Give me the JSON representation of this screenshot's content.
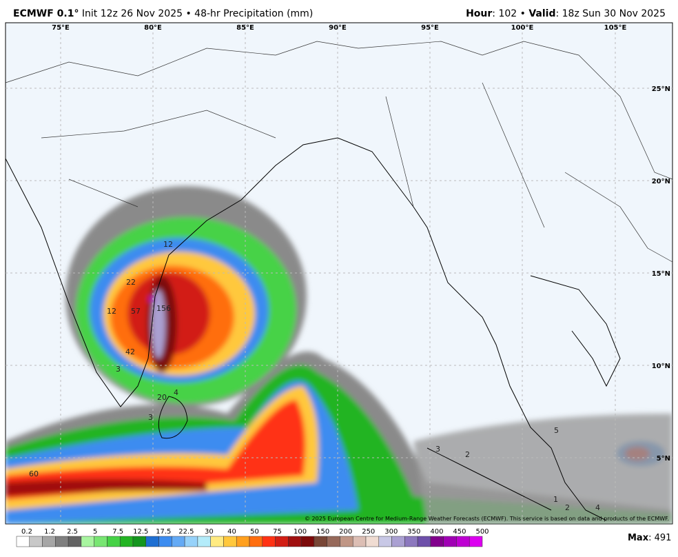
{
  "header": {
    "title": "ECMWF 0.1°",
    "subtitle": "Init 12z 26 Nov 2025 • 48-hr Precipitation (mm)",
    "hour_label": "Hour",
    "hour_text": ": 102 • ",
    "valid_label": "Valid",
    "valid_text": ": 18z Sun 30 Nov 2025"
  },
  "map": {
    "lon_labels": [
      "75°E",
      "80°E",
      "85°E",
      "90°E",
      "95°E",
      "100°E",
      "105°E"
    ],
    "lat_labels": [
      "25°N",
      "20°N",
      "15°N",
      "10°N",
      "5°N"
    ],
    "contour_labels": [
      "22",
      "12",
      "57",
      "156",
      "42",
      "3",
      "20",
      "4",
      "3",
      "60",
      "3",
      "2",
      "5",
      "1",
      "2",
      "4",
      "12"
    ],
    "copyright": "© 2025 European Centre for Medium-Range Weather Forecasts (ECMWF). This service is based on data and products of the ECMWF."
  },
  "colorbar": {
    "labels": [
      "0.2",
      "1.2",
      "2.5",
      "5",
      "7.5",
      "12.5",
      "17.5",
      "22.5",
      "30",
      "40",
      "50",
      "75",
      "100",
      "150",
      "200",
      "250",
      "300",
      "350",
      "400",
      "450",
      "500"
    ],
    "colors": [
      "#ffffff",
      "#c8c8c8",
      "#a6a6a6",
      "#7f7f7f",
      "#636363",
      "#a8f5a0",
      "#78e672",
      "#46d246",
      "#23b423",
      "#14961e",
      "#1e6fd2",
      "#3c8cf0",
      "#64aaf5",
      "#96d2fa",
      "#b4ecfa",
      "#ffeb82",
      "#ffc83c",
      "#ffa01e",
      "#ff6e0f",
      "#ff3214",
      "#d21e14",
      "#a00f0f",
      "#7d0a0a",
      "#784636",
      "#96695a",
      "#c09685",
      "#dcbeb4",
      "#f0dcd2",
      "#c8c8e6",
      "#aaa0d2",
      "#8c78be",
      "#6e50aa",
      "#82008c",
      "#a000b4",
      "#be00d2",
      "#dc00f0"
    ],
    "max_label": "Max",
    "max_value": "491"
  }
}
